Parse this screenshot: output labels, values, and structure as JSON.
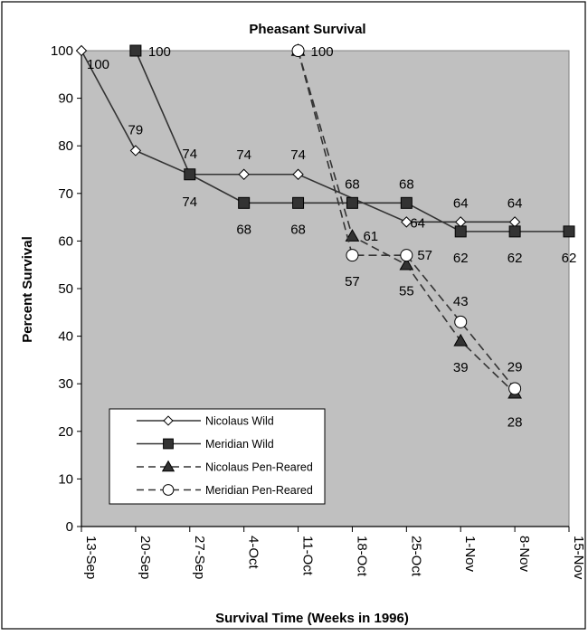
{
  "chart_data": {
    "type": "line",
    "title": "Pheasant Survival",
    "xlabel": "Survival Time (Weeks in 1996)",
    "ylabel": "Percent Survival",
    "ylim": [
      0,
      100
    ],
    "yticks": [
      "0",
      "10",
      "20",
      "30",
      "40",
      "50",
      "60",
      "70",
      "80",
      "90",
      "100"
    ],
    "categories": [
      "13-Sep",
      "20-Sep",
      "27-Sep",
      "4-Oct",
      "11-Oct",
      "18-Oct",
      "25-Oct",
      "1-Nov",
      "8-Nov",
      "15-Nov"
    ],
    "grid": false,
    "plot_background": "#c0c0c0",
    "legend_position": "bottom-left",
    "series": [
      {
        "name": "Nicolaus Wild",
        "marker": "diamond-open",
        "line": "solid",
        "points": [
          {
            "date": "13-Sep",
            "value": 100,
            "label": "100"
          },
          {
            "date": "20-Sep",
            "value": 79,
            "label": "79"
          },
          {
            "date": "27-Sep",
            "value": 74,
            "label": "74"
          },
          {
            "date": "4-Oct",
            "value": 74,
            "label": "74"
          },
          {
            "date": "11-Oct",
            "value": 74,
            "label": "74"
          },
          {
            "date": "25-Oct",
            "value": 64,
            "label": "64"
          },
          {
            "date": "1-Nov",
            "value": 64,
            "label": "64"
          },
          {
            "date": "8-Nov",
            "value": 64,
            "label": "64"
          }
        ]
      },
      {
        "name": "Meridian Wild",
        "marker": "square-filled",
        "line": "solid",
        "points": [
          {
            "date": "20-Sep",
            "value": 100,
            "label": "100"
          },
          {
            "date": "27-Sep",
            "value": 74,
            "label": "74"
          },
          {
            "date": "4-Oct",
            "value": 68,
            "label": "68"
          },
          {
            "date": "11-Oct",
            "value": 68,
            "label": "68"
          },
          {
            "date": "18-Oct",
            "value": 68,
            "label": "68"
          },
          {
            "date": "25-Oct",
            "value": 68,
            "label": "68"
          },
          {
            "date": "1-Nov",
            "value": 62,
            "label": "62"
          },
          {
            "date": "8-Nov",
            "value": 62,
            "label": "62"
          },
          {
            "date": "15-Nov",
            "value": 62,
            "label": "62"
          }
        ]
      },
      {
        "name": "Nicolaus Pen-Reared",
        "marker": "triangle-filled",
        "line": "dashed",
        "points": [
          {
            "date": "11-Oct",
            "value": 100,
            "label": ""
          },
          {
            "date": "18-Oct",
            "value": 61,
            "label": "61"
          },
          {
            "date": "25-Oct",
            "value": 55,
            "label": "55"
          },
          {
            "date": "1-Nov",
            "value": 39,
            "label": "39"
          },
          {
            "date": "8-Nov",
            "value": 28,
            "label": "28"
          }
        ]
      },
      {
        "name": "Meridian Pen-Reared",
        "marker": "circle-open",
        "line": "dashed",
        "points": [
          {
            "date": "11-Oct",
            "value": 100,
            "label": "100"
          },
          {
            "date": "18-Oct",
            "value": 57,
            "label": "57"
          },
          {
            "date": "25-Oct",
            "value": 57,
            "label": "57"
          },
          {
            "date": "1-Nov",
            "value": 43,
            "label": "43"
          },
          {
            "date": "8-Nov",
            "value": 29,
            "label": "29"
          }
        ]
      }
    ]
  }
}
